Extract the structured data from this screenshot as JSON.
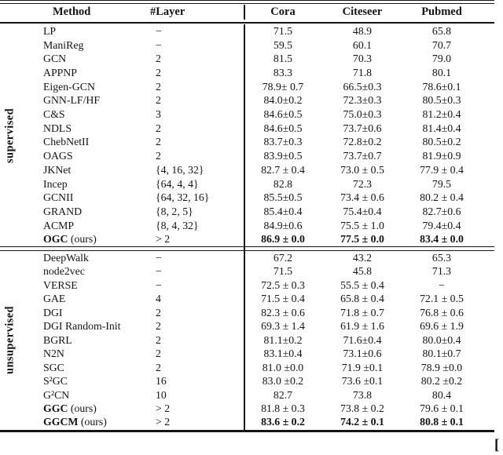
{
  "table": {
    "header": {
      "method": "Method",
      "layer": "#Layer",
      "cora": "Cora",
      "citeseer": "Citeseer",
      "pubmed": "Pubmed"
    },
    "sections": [
      {
        "label": "supervised",
        "rows": [
          {
            "method": "LP",
            "suffix": "",
            "bold": false,
            "bold_values": false,
            "layer": "−",
            "cora": "71.5",
            "citeseer": "48.9",
            "pubmed": "65.8"
          },
          {
            "method": "ManiReg",
            "suffix": "",
            "bold": false,
            "bold_values": false,
            "layer": "−",
            "cora": "59.5",
            "citeseer": "60.1",
            "pubmed": "70.7"
          },
          {
            "method": "GCN",
            "suffix": "",
            "bold": false,
            "bold_values": false,
            "layer": "2",
            "cora": "81.5",
            "citeseer": "70.3",
            "pubmed": "79.0"
          },
          {
            "method": "APPNP",
            "suffix": "",
            "bold": false,
            "bold_values": false,
            "layer": "2",
            "cora": "83.3",
            "citeseer": "71.8",
            "pubmed": "80.1"
          },
          {
            "method": "Eigen-GCN",
            "suffix": "",
            "bold": false,
            "bold_values": false,
            "layer": "2",
            "cora": "78.9± 0.7",
            "citeseer": "66.5±0.3",
            "pubmed": "78.6±0.1"
          },
          {
            "method": "GNN-LF/HF",
            "suffix": "",
            "bold": false,
            "bold_values": false,
            "layer": "2",
            "cora": "84.0±0.2",
            "citeseer": "72.3±0.3",
            "pubmed": "80.5±0.3"
          },
          {
            "method": "C&S",
            "suffix": "",
            "bold": false,
            "bold_values": false,
            "layer": "3",
            "cora": "84.6±0.5",
            "citeseer": "75.0±0.3",
            "pubmed": "81.2±0.4"
          },
          {
            "method": "NDLS",
            "suffix": "",
            "bold": false,
            "bold_values": false,
            "layer": "2",
            "cora": "84.6±0.5",
            "citeseer": "73.7±0.6",
            "pubmed": "81.4±0.4"
          },
          {
            "method": "ChebNetII",
            "suffix": "",
            "bold": false,
            "bold_values": false,
            "layer": "2",
            "cora": "83.7±0.3",
            "citeseer": "72.8±0.2",
            "pubmed": "80.5±0.2"
          },
          {
            "method": "OAGS",
            "suffix": "",
            "bold": false,
            "bold_values": false,
            "layer": "2",
            "cora": "83.9±0.5",
            "citeseer": "73.7±0.7",
            "pubmed": "81.9±0.9"
          },
          {
            "method": "JKNet",
            "suffix": "",
            "bold": false,
            "bold_values": false,
            "layer": "{4, 16, 32}",
            "cora": "82.7 ± 0.4",
            "citeseer": "73.0 ± 0.5",
            "pubmed": "77.9 ± 0.4"
          },
          {
            "method": "Incep",
            "suffix": "",
            "bold": false,
            "bold_values": false,
            "layer": "{64, 4, 4}",
            "cora": "82.8",
            "citeseer": "72.3",
            "pubmed": "79.5"
          },
          {
            "method": "GCNII",
            "suffix": "",
            "bold": false,
            "bold_values": false,
            "layer": "{64, 32, 16}",
            "cora": "85.5±0.5",
            "citeseer": "73.4 ± 0.6",
            "pubmed": "80.2 ± 0.4"
          },
          {
            "method": "GRAND",
            "suffix": "",
            "bold": false,
            "bold_values": false,
            "layer": "{8, 2, 5}",
            "cora": "85.4±0.4",
            "citeseer": "75.4±0.4",
            "pubmed": "82.7±0.6"
          },
          {
            "method": "ACMP",
            "suffix": "",
            "bold": false,
            "bold_values": false,
            "layer": "{8, 4, 32}",
            "cora": "84.9±0.6",
            "citeseer": "75.5 ± 1.0",
            "pubmed": "79.4±0.4"
          },
          {
            "method": "OGC",
            "suffix": " (ours)",
            "bold": true,
            "bold_values": true,
            "layer": "> 2",
            "cora": "86.9 ± 0.0",
            "citeseer": "77.5 ± 0.0",
            "pubmed": "83.4 ± 0.0"
          }
        ]
      },
      {
        "label": "unsupervised",
        "rows": [
          {
            "method": "DeepWalk",
            "suffix": "",
            "bold": false,
            "bold_values": false,
            "layer": "−",
            "cora": "67.2",
            "citeseer": "43.2",
            "pubmed": "65.3"
          },
          {
            "method": "node2vec",
            "suffix": "",
            "bold": false,
            "bold_values": false,
            "layer": "−",
            "cora": "71.5",
            "citeseer": "45.8",
            "pubmed": "71.3"
          },
          {
            "method": "VERSE",
            "suffix": "",
            "bold": false,
            "bold_values": false,
            "layer": "−",
            "cora": "72.5 ± 0.3",
            "citeseer": "55.5 ± 0.4",
            "pubmed": "−"
          },
          {
            "method": "GAE",
            "suffix": "",
            "bold": false,
            "bold_values": false,
            "layer": "4",
            "cora": "71.5 ± 0.4",
            "citeseer": "65.8 ± 0.4",
            "pubmed": "72.1 ± 0.5"
          },
          {
            "method": "DGI",
            "suffix": "",
            "bold": false,
            "bold_values": false,
            "layer": "2",
            "cora": "82.3 ± 0.6",
            "citeseer": "71.8 ± 0.7",
            "pubmed": "76.8 ± 0.6"
          },
          {
            "method": "DGI Random-Init",
            "suffix": "",
            "bold": false,
            "bold_values": false,
            "layer": "2",
            "cora": "69.3 ± 1.4",
            "citeseer": "61.9 ± 1.6",
            "pubmed": "69.6 ± 1.9"
          },
          {
            "method": "BGRL",
            "suffix": "",
            "bold": false,
            "bold_values": false,
            "layer": "2",
            "cora": "81.1±0.2",
            "citeseer": "71.6±0.4",
            "pubmed": "80.0±0.4"
          },
          {
            "method": "N2N",
            "suffix": "",
            "bold": false,
            "bold_values": false,
            "layer": "2",
            "cora": "83.1±0.4",
            "citeseer": "73.1±0.6",
            "pubmed": "80.1±0.7"
          },
          {
            "method": "SGC",
            "suffix": "",
            "bold": false,
            "bold_values": false,
            "layer": "2",
            "cora": "81.0 ±0.0",
            "citeseer": "71.9 ±0.1",
            "pubmed": "78.9 ±0.0"
          },
          {
            "method": "S²GC",
            "suffix": "",
            "bold": false,
            "bold_values": false,
            "layer": "16",
            "cora": "83.0 ±0.2",
            "citeseer": "73.6 ±0.1",
            "pubmed": "80.2 ±0.2"
          },
          {
            "method": "G²CN",
            "suffix": "",
            "bold": false,
            "bold_values": false,
            "layer": "10",
            "cora": "82.7",
            "citeseer": "73.8",
            "pubmed": "80.4"
          },
          {
            "method": "GGC",
            "suffix": " (ours)",
            "bold": true,
            "bold_values": false,
            "layer": "> 2",
            "cora": "81.8 ± 0.3",
            "citeseer": "73.8 ± 0.2",
            "pubmed": "79.6 ± 0.1"
          },
          {
            "method": "GGCM",
            "suffix": " (ours)",
            "bold": true,
            "bold_values": true,
            "layer": "> 2",
            "cora": "83.6 ± 0.2",
            "citeseer": "74.2 ± 0.1",
            "pubmed": "80.8 ± 0.1"
          }
        ]
      }
    ]
  },
  "artifact": "["
}
